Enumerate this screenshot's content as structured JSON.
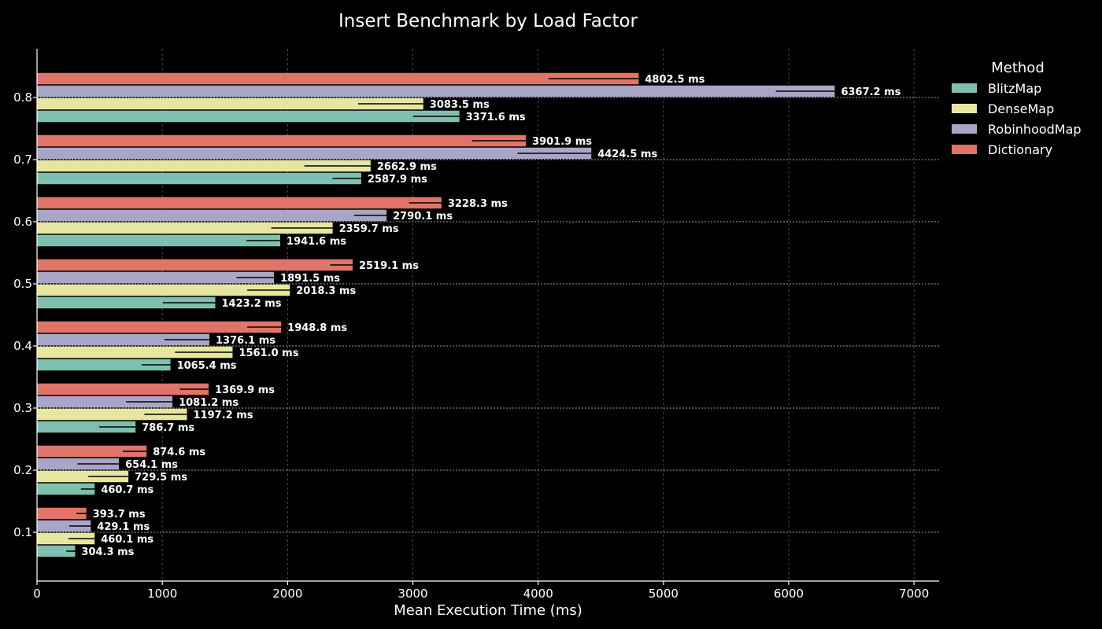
{
  "chart_data": {
    "type": "bar",
    "orientation": "horizontal",
    "title": "Insert Benchmark by Load Factor",
    "xlabel": "Mean Execution Time (ms)",
    "ylabel": "",
    "xlim": [
      0,
      7200
    ],
    "xticks": [
      0,
      1000,
      2000,
      3000,
      4000,
      5000,
      6000,
      7000
    ],
    "categories": [
      "0.1",
      "0.2",
      "0.3",
      "0.4",
      "0.5",
      "0.6",
      "0.7",
      "0.8"
    ],
    "grid": true,
    "legend": {
      "title": "Method",
      "position": "right"
    },
    "value_suffix": " ms",
    "series": [
      {
        "name": "BlitzMap",
        "color": "#7fbfb0",
        "values": [
          304.3,
          460.7,
          786.7,
          1065.4,
          1423.2,
          1941.6,
          2587.9,
          3371.6
        ],
        "errors": [
          70,
          110,
          290,
          230,
          420,
          270,
          230,
          370
        ]
      },
      {
        "name": "DenseMap",
        "color": "#e6e6a0",
        "values": [
          460.1,
          729.5,
          1197.2,
          1561.0,
          2018.3,
          2359.7,
          2662.9,
          3083.5
        ],
        "errors": [
          210,
          320,
          340,
          460,
          340,
          490,
          530,
          520
        ]
      },
      {
        "name": "RobinhoodMap",
        "color": "#a7a6c6",
        "values": [
          429.1,
          654.1,
          1081.2,
          1376.1,
          1891.5,
          2790.1,
          4424.5,
          6367.2
        ],
        "errors": [
          170,
          330,
          370,
          360,
          300,
          260,
          590,
          470
        ]
      },
      {
        "name": "Dictionary",
        "color": "#e07468",
        "values": [
          393.7,
          874.6,
          1369.9,
          1948.8,
          2519.1,
          3228.3,
          3901.9,
          4802.5
        ],
        "errors": [
          80,
          190,
          230,
          270,
          180,
          260,
          430,
          720
        ]
      }
    ]
  }
}
